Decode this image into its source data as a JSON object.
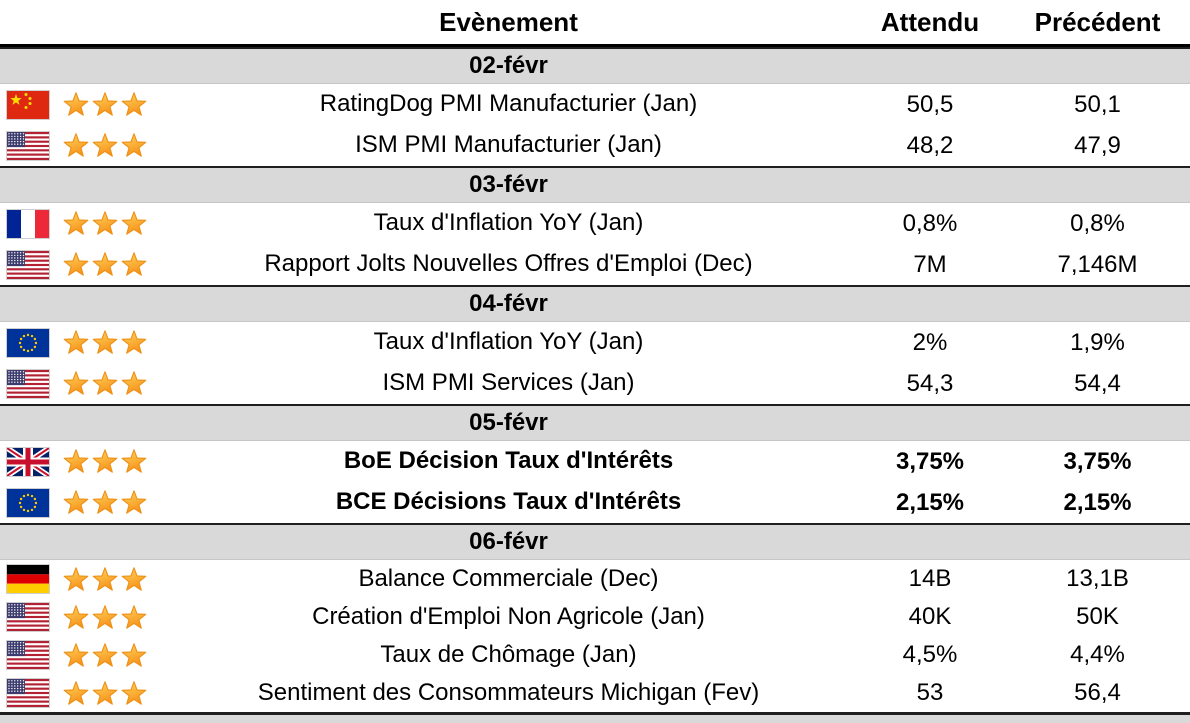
{
  "header": {
    "event": "Evènement",
    "expected": "Attendu",
    "previous": "Précédent"
  },
  "colors": {
    "date_row_bg": "#d9d9d9",
    "star_top": "#ffd75e",
    "star_bottom": "#f7941d",
    "star_border": "#ed9016",
    "divider_dark": "#1f1f1f"
  },
  "icons": {
    "star": "star-icon",
    "flags": [
      "china-flag-icon",
      "usa-flag-icon",
      "france-flag-icon",
      "eu-flag-icon",
      "uk-flag-icon",
      "germany-flag-icon"
    ]
  },
  "groups": [
    {
      "date": "02-févr",
      "rows": [
        {
          "country": "china",
          "stars": 3,
          "event": "RatingDog PMI Manufacturier (Jan)",
          "expected": "50,5",
          "previous": "50,1",
          "bold": false
        },
        {
          "country": "usa",
          "stars": 3,
          "event": "ISM PMI Manufacturier (Jan)",
          "expected": "48,2",
          "previous": "47,9",
          "bold": false
        }
      ]
    },
    {
      "date": "03-févr",
      "rows": [
        {
          "country": "france",
          "stars": 3,
          "event": "Taux d'Inflation YoY (Jan)",
          "expected": "0,8%",
          "previous": "0,8%",
          "bold": false
        },
        {
          "country": "usa",
          "stars": 3,
          "event": "Rapport Jolts Nouvelles Offres d'Emploi (Dec)",
          "expected": "7M",
          "previous": "7,146M",
          "bold": false
        }
      ]
    },
    {
      "date": "04-févr",
      "rows": [
        {
          "country": "eu",
          "stars": 3,
          "event": "Taux d'Inflation YoY (Jan)",
          "expected": "2%",
          "previous": "1,9%",
          "bold": false
        },
        {
          "country": "usa",
          "stars": 3,
          "event": "ISM PMI Services (Jan)",
          "expected": "54,3",
          "previous": "54,4",
          "bold": false
        }
      ]
    },
    {
      "date": "05-févr",
      "rows": [
        {
          "country": "uk",
          "stars": 3,
          "event": "BoE Décision Taux d'Intérêts",
          "expected": "3,75%",
          "previous": "3,75%",
          "bold": true
        },
        {
          "country": "eu",
          "stars": 3,
          "event": "BCE Décisions Taux d'Intérêts",
          "expected": "2,15%",
          "previous": "2,15%",
          "bold": true
        }
      ]
    },
    {
      "date": "06-févr",
      "rows": [
        {
          "country": "germany",
          "stars": 3,
          "event": "Balance Commerciale (Dec)",
          "expected": "14B",
          "previous": "13,1B",
          "bold": false
        },
        {
          "country": "usa",
          "stars": 3,
          "event": "Création d'Emploi Non Agricole (Jan)",
          "expected": "40K",
          "previous": "50K",
          "bold": false
        },
        {
          "country": "usa",
          "stars": 3,
          "event": "Taux de Chômage (Jan)",
          "expected": "4,5%",
          "previous": "4,4%",
          "bold": false
        },
        {
          "country": "usa",
          "stars": 3,
          "event": "Sentiment des Consommateurs Michigan (Fev)",
          "expected": "53",
          "previous": "56,4",
          "bold": false
        }
      ]
    }
  ]
}
